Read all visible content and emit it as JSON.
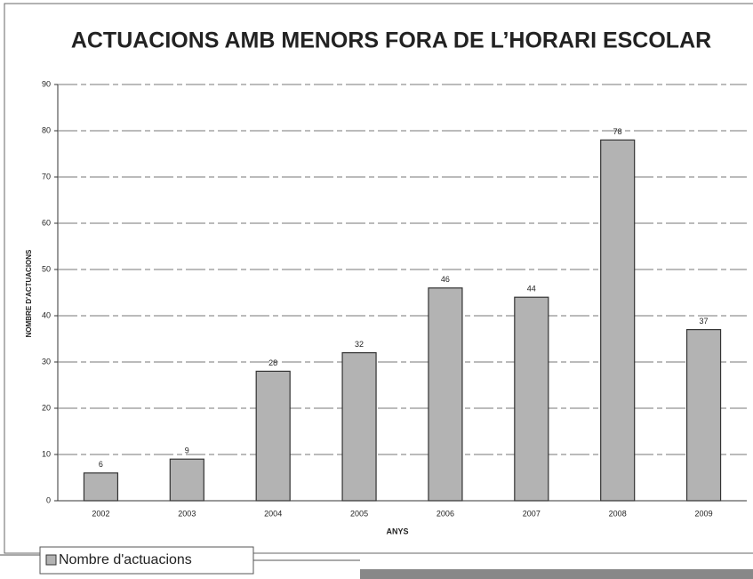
{
  "chart_data": {
    "type": "bar",
    "title": "ACTUACIONS AMB MENORS  FORA DE L’HORARI ESCOLAR",
    "x_label": "ANYS",
    "y_label": "NOMBRE D'ACTUACIONS",
    "categories": [
      "2002",
      "2003",
      "2004",
      "2005",
      "2006",
      "2007",
      "2008",
      "2009"
    ],
    "series": [
      {
        "name": "Nombre d'actuacions",
        "color": "#b3b3b3",
        "values": [
          6,
          9,
          28,
          32,
          46,
          44,
          78,
          37
        ]
      }
    ],
    "ylim": [
      0,
      90
    ],
    "yticks": [
      0,
      10,
      20,
      30,
      40,
      50,
      60,
      70,
      80,
      90
    ],
    "grid": true
  }
}
